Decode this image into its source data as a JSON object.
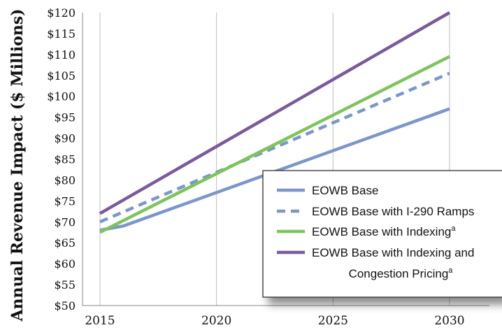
{
  "chart_data": {
    "type": "line",
    "ylabel": "Annual Revenue Impact ($ Millions)",
    "xlabel": "",
    "x": [
      2015,
      2016,
      2030
    ],
    "xlim": [
      2015,
      2030
    ],
    "xticks": [
      "2015",
      "2020",
      "2025",
      "2030"
    ],
    "ylim": [
      50,
      120
    ],
    "yticks": [
      "$50",
      "$55",
      "$60",
      "$65",
      "$70",
      "$75",
      "$80",
      "$85",
      "$90",
      "$95",
      "$100",
      "$105",
      "$110",
      "$115",
      "$120"
    ],
    "grid": "vertical",
    "legend_position": "bottom-right",
    "series": [
      {
        "name": "EOWB Base",
        "style": "solid",
        "color": "#7b96cc",
        "points": [
          [
            2015,
            68
          ],
          [
            2016,
            69
          ],
          [
            2030,
            97
          ]
        ]
      },
      {
        "name": "EOWB Base with I-290 Ramps",
        "style": "dashed",
        "color": "#7b96cc",
        "points": [
          [
            2015,
            70
          ],
          [
            2030,
            105.5
          ]
        ]
      },
      {
        "name": "EOWB Base with Indexing",
        "name_superscript": "a",
        "style": "solid",
        "color": "#7ec45c",
        "points": [
          [
            2015,
            67.5
          ],
          [
            2030,
            109.5
          ]
        ]
      },
      {
        "name": "EOWB Base with Indexing and Congestion Pricing",
        "name_superscript": "a",
        "style": "solid",
        "color": "#7b5a9c",
        "points": [
          [
            2015,
            72
          ],
          [
            2030,
            120
          ]
        ]
      }
    ]
  },
  "legend": {
    "lines": [
      {
        "text": "EOWB Base",
        "sup": ""
      },
      {
        "text": "EOWB Base with I-290 Ramps",
        "sup": ""
      },
      {
        "text": "EOWB Base with Indexing",
        "sup": "a"
      },
      {
        "text": "EOWB Base with Indexing and",
        "sup": ""
      },
      {
        "text": "Congestion Pricing",
        "sup": "a"
      }
    ]
  }
}
